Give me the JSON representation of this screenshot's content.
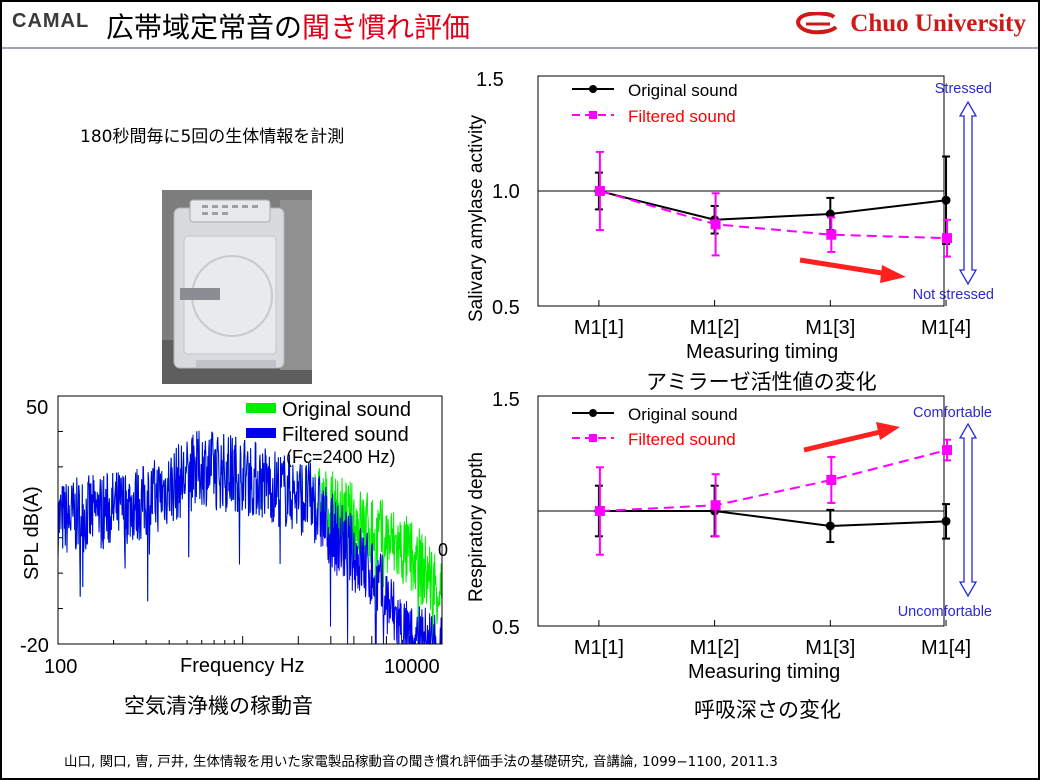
{
  "header": {
    "logo_left": "CAMAL",
    "title_black": "広帯域定常音の",
    "title_red": "聞き慣れ評価",
    "university": "Chuo University",
    "colors": {
      "accent_red": "#e0001a",
      "rule": "#9aa3ad"
    }
  },
  "measure_text": "180秒間毎に5回の生体情報を計測",
  "photo": {
    "icon": "air-purifier-photo"
  },
  "captions": {
    "spectrum": "空気清浄機の稼動音",
    "amylase": "アミラーゼ活性値の変化",
    "respiration": "呼吸深さの変化"
  },
  "citation": "山口, 関口, 曺, 戸井, 生体情報を用いた家電製品稼動音の聞き慣れ評価手法の基礎研究, 音講論, 1099−1100, 2011.3",
  "chart_data": [
    {
      "type": "line",
      "xlabel": "Frequency  Hz",
      "ylabel": "SPL  dB(A)",
      "xscale": "log",
      "xlim": [
        100,
        12000
      ],
      "ylim": [
        -20,
        50
      ],
      "x_ticks": [
        "100",
        "10000"
      ],
      "y_ticks": [
        "50",
        "-20"
      ],
      "stray_label": "0 .",
      "legend": {
        "placement": "top-right",
        "note": "(Fc=2400 Hz)"
      },
      "series": [
        {
          "name": "Original sound",
          "color": "#00ee00",
          "envelope": [
            [
              100,
              15
            ],
            [
              300,
              20
            ],
            [
              600,
              30
            ],
            [
              1000,
              28
            ],
            [
              2000,
              22
            ],
            [
              3000,
              18
            ],
            [
              5000,
              12
            ],
            [
              8000,
              5
            ],
            [
              12000,
              -5
            ]
          ]
        },
        {
          "name": "Filtered sound",
          "color": "#0000ee",
          "cutoff": 2400,
          "envelope": [
            [
              100,
              15
            ],
            [
              300,
              20
            ],
            [
              600,
              30
            ],
            [
              1000,
              28
            ],
            [
              2000,
              22
            ],
            [
              2400,
              20
            ],
            [
              3000,
              12
            ],
            [
              5000,
              0
            ],
            [
              8000,
              -20
            ]
          ]
        }
      ]
    },
    {
      "type": "line",
      "xlabel": "Measuring timing",
      "ylabel": "Salivary amylase activity",
      "categories": [
        "M1[1]",
        "M1[2]",
        "M1[3]",
        "M1[4]"
      ],
      "ylim": [
        0.5,
        1.5
      ],
      "y_ticks": [
        "0.5",
        "1.0",
        "1.5"
      ],
      "reference_line": 1.0,
      "legend": {
        "placement": "top-left"
      },
      "series": [
        {
          "name": "Original sound",
          "color": "#000000",
          "style": "solid",
          "marker": "circle",
          "values": [
            1.0,
            0.875,
            0.9,
            0.96
          ],
          "errors": [
            0.08,
            0.06,
            0.07,
            0.19
          ]
        },
        {
          "name": "Filtered sound",
          "color": "#ff00ff",
          "style": "dashed",
          "marker": "square",
          "values": [
            1.0,
            0.855,
            0.81,
            0.795
          ],
          "errors": [
            0.17,
            0.135,
            0.075,
            0.08
          ]
        }
      ],
      "scale_labels": {
        "top": "Stressed",
        "bottom": "Not stressed"
      },
      "trend_arrow": "down-right"
    },
    {
      "type": "line",
      "xlabel": "Measuring timing",
      "ylabel": "Respiratory depth",
      "categories": [
        "M1[1]",
        "M1[2]",
        "M1[3]",
        "M1[4]"
      ],
      "ylim": [
        0.5,
        1.5
      ],
      "y_ticks": [
        "0.5",
        "1.5"
      ],
      "reference_line": 1.0,
      "legend": {
        "placement": "top-left"
      },
      "series": [
        {
          "name": "Original sound",
          "color": "#000000",
          "style": "solid",
          "marker": "circle",
          "values": [
            1.0,
            1.0,
            0.935,
            0.955
          ],
          "errors": [
            0.11,
            0.11,
            0.07,
            0.075
          ]
        },
        {
          "name": "Filtered sound",
          "color": "#ff00ff",
          "style": "dashed",
          "marker": "square",
          "values": [
            1.0,
            1.025,
            1.135,
            1.265
          ],
          "errors": [
            0.19,
            0.135,
            0.1,
            0.045
          ]
        }
      ],
      "scale_labels": {
        "top": "Comfortable",
        "bottom": "Uncomfortable"
      },
      "trend_arrow": "up-right"
    }
  ]
}
